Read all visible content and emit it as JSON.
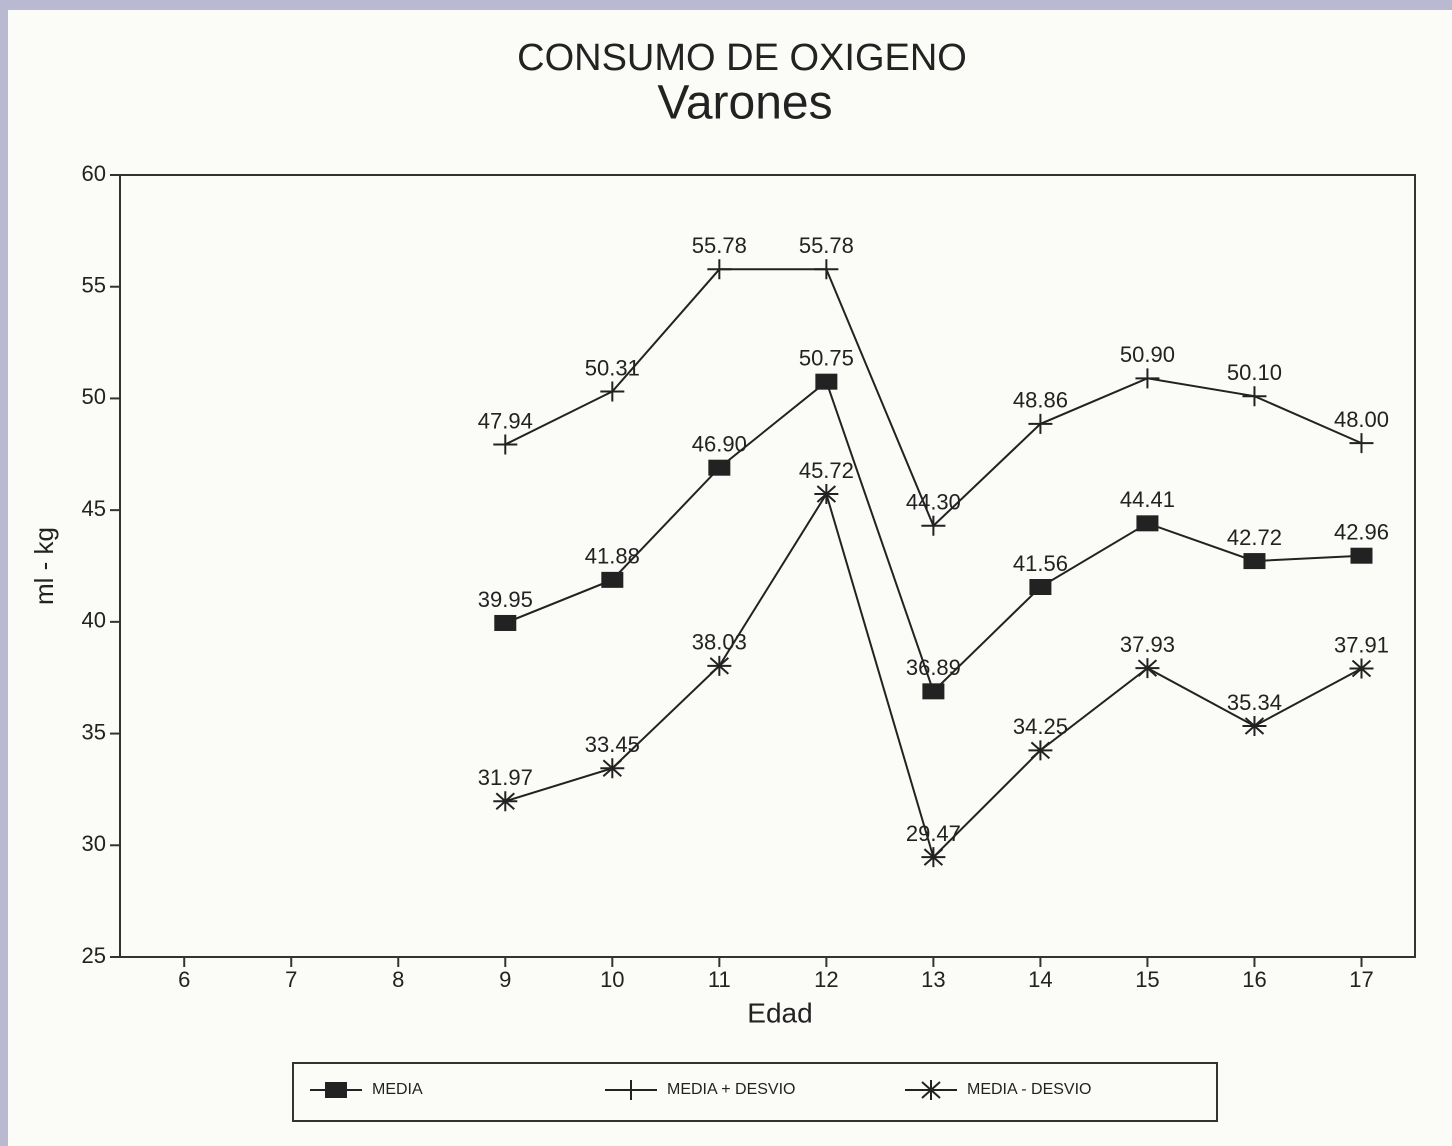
{
  "chart_data": {
    "type": "line",
    "title": "CONSUMO DE OXIGENO",
    "subtitle": "Varones",
    "x_label": "Edad",
    "y_label": "ml - kg",
    "x": [
      9,
      10,
      11,
      12,
      13,
      14,
      15,
      16,
      17
    ],
    "xlim": [
      5.4,
      17.5
    ],
    "xticks": [
      6,
      7,
      8,
      9,
      10,
      11,
      12,
      13,
      14,
      15,
      16,
      17
    ],
    "ylim": [
      25,
      60
    ],
    "yticks": [
      25,
      30,
      35,
      40,
      45,
      50,
      55,
      60
    ],
    "series": [
      {
        "name": "MEDIA",
        "color": "#222222",
        "marker": "square",
        "values": [
          39.95,
          41.88,
          46.9,
          50.75,
          36.89,
          41.56,
          44.41,
          42.72,
          42.96
        ],
        "value_labels": [
          "39.95",
          "41.88",
          "46.90",
          "50.75",
          "36.89",
          "41.56",
          "44.41",
          "42.72",
          "42.96"
        ]
      },
      {
        "name": "MEDIA + DESVIO",
        "color": "#222222",
        "marker": "plus",
        "values": [
          47.94,
          50.31,
          55.78,
          55.78,
          44.3,
          48.86,
          50.9,
          50.1,
          48.0
        ],
        "value_labels": [
          "47.94",
          "50.31",
          "55.78",
          "55.78",
          "44.30",
          "48.86",
          "50.90",
          "50.10",
          "48.00"
        ]
      },
      {
        "name": "MEDIA - DESVIO",
        "color": "#222222",
        "marker": "asterisk",
        "values": [
          31.97,
          33.45,
          38.03,
          45.72,
          29.47,
          34.25,
          37.93,
          35.34,
          37.91
        ],
        "value_labels": [
          "31.97",
          "33.45",
          "38.03",
          "45.72",
          "29.47",
          "34.25",
          "37.93",
          "35.34",
          "37.91"
        ]
      }
    ]
  }
}
